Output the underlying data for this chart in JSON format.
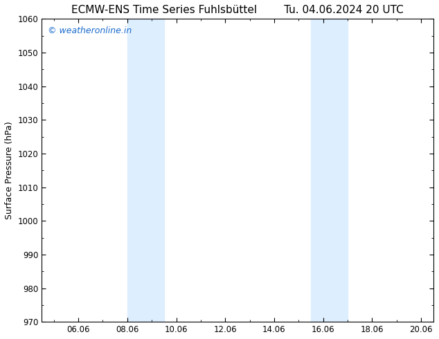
{
  "title_left": "ECMW-ENS Time Series Fuhlsbüttel",
  "title_right": "Tu. 04.06.2024 20 UTC",
  "ylabel": "Surface Pressure (hPa)",
  "xlabel": "",
  "ylim": [
    970,
    1060
  ],
  "yticks": [
    970,
    980,
    990,
    1000,
    1010,
    1020,
    1030,
    1040,
    1050,
    1060
  ],
  "xlim_start": 4.5,
  "xlim_end": 20.5,
  "xtick_labels": [
    "06.06",
    "08.06",
    "10.06",
    "12.06",
    "14.06",
    "16.06",
    "18.06",
    "20.06"
  ],
  "xtick_positions": [
    6.0,
    8.0,
    10.0,
    12.0,
    14.0,
    16.0,
    18.0,
    20.0
  ],
  "shaded_bands": [
    {
      "x_start": 8.0,
      "x_end": 9.5
    },
    {
      "x_start": 15.5,
      "x_end": 17.0
    }
  ],
  "shade_color": "#ddeeff",
  "bg_color": "#ffffff",
  "plot_bg_color": "#ffffff",
  "watermark_text": "© weatheronline.in",
  "watermark_color": "#1a6bcc",
  "title_fontsize": 11,
  "label_fontsize": 9,
  "tick_fontsize": 8.5,
  "watermark_fontsize": 9
}
